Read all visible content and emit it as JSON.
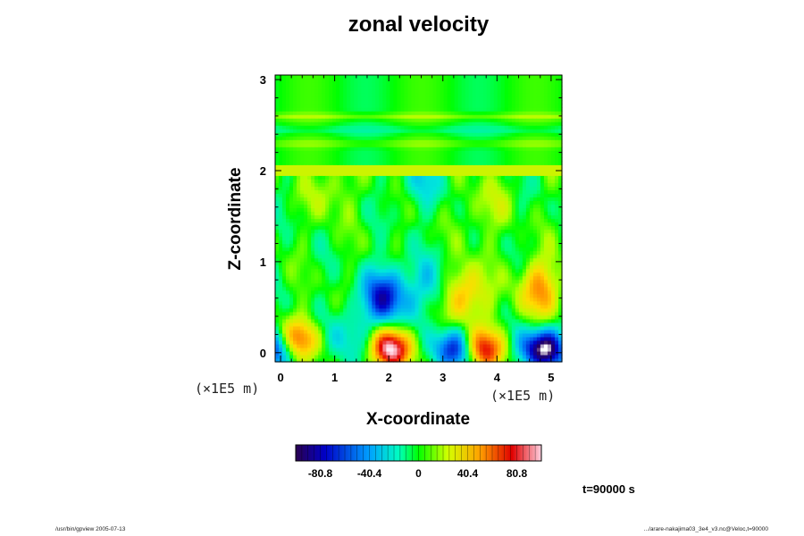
{
  "chart_data": {
    "type": "heatmap",
    "title": "zonal velocity",
    "xlabel": "X-coordinate",
    "ylabel": "Z-coordinate",
    "x_unit": "(×1E5 m)",
    "y_unit": "(×1E5 m)",
    "xlim": [
      -0.1,
      5.2
    ],
    "ylim": [
      -0.1,
      3.05
    ],
    "x_ticks": [
      "0",
      "1",
      "2",
      "3",
      "4",
      "5"
    ],
    "y_ticks": [
      "0",
      "1",
      "2",
      "3"
    ],
    "colorbar": {
      "ticks": [
        "-80.8",
        "-40.4",
        "0",
        "40.4",
        "80.8"
      ],
      "range": [
        -101,
        101
      ]
    },
    "features": [
      {
        "x": 1.95,
        "z": 0.62,
        "value": -80
      },
      {
        "x": 2.05,
        "z": 0.05,
        "value": 100
      },
      {
        "x": 3.2,
        "z": 0.05,
        "value": -75
      },
      {
        "x": 3.75,
        "z": 0.05,
        "value": 80
      },
      {
        "x": 4.85,
        "z": 0.05,
        "value": -110
      },
      {
        "x": 4.8,
        "z": 0.7,
        "value": 55
      },
      {
        "x": 3.4,
        "z": 0.65,
        "value": 55
      },
      {
        "x": 0.35,
        "z": 0.15,
        "value": 75
      },
      {
        "x": -0.05,
        "z": 0.05,
        "value": -70
      },
      {
        "x": 2.8,
        "z": 0.75,
        "value": -30
      },
      {
        "x": 1.2,
        "z": 0.2,
        "value": -30
      },
      {
        "x": 2.6,
        "z": 1.9,
        "value": -25
      },
      {
        "x": 0.9,
        "z": 1.8,
        "value": 20
      },
      {
        "x": 3.8,
        "z": 1.6,
        "value": 20
      }
    ]
  },
  "time_label": "t=90000 s",
  "footer_left": "/usr/bin/gpview 2005-07-13",
  "footer_right": ".../arare-nakajima03_3e4_v3.nc@Veloc,t=90000"
}
